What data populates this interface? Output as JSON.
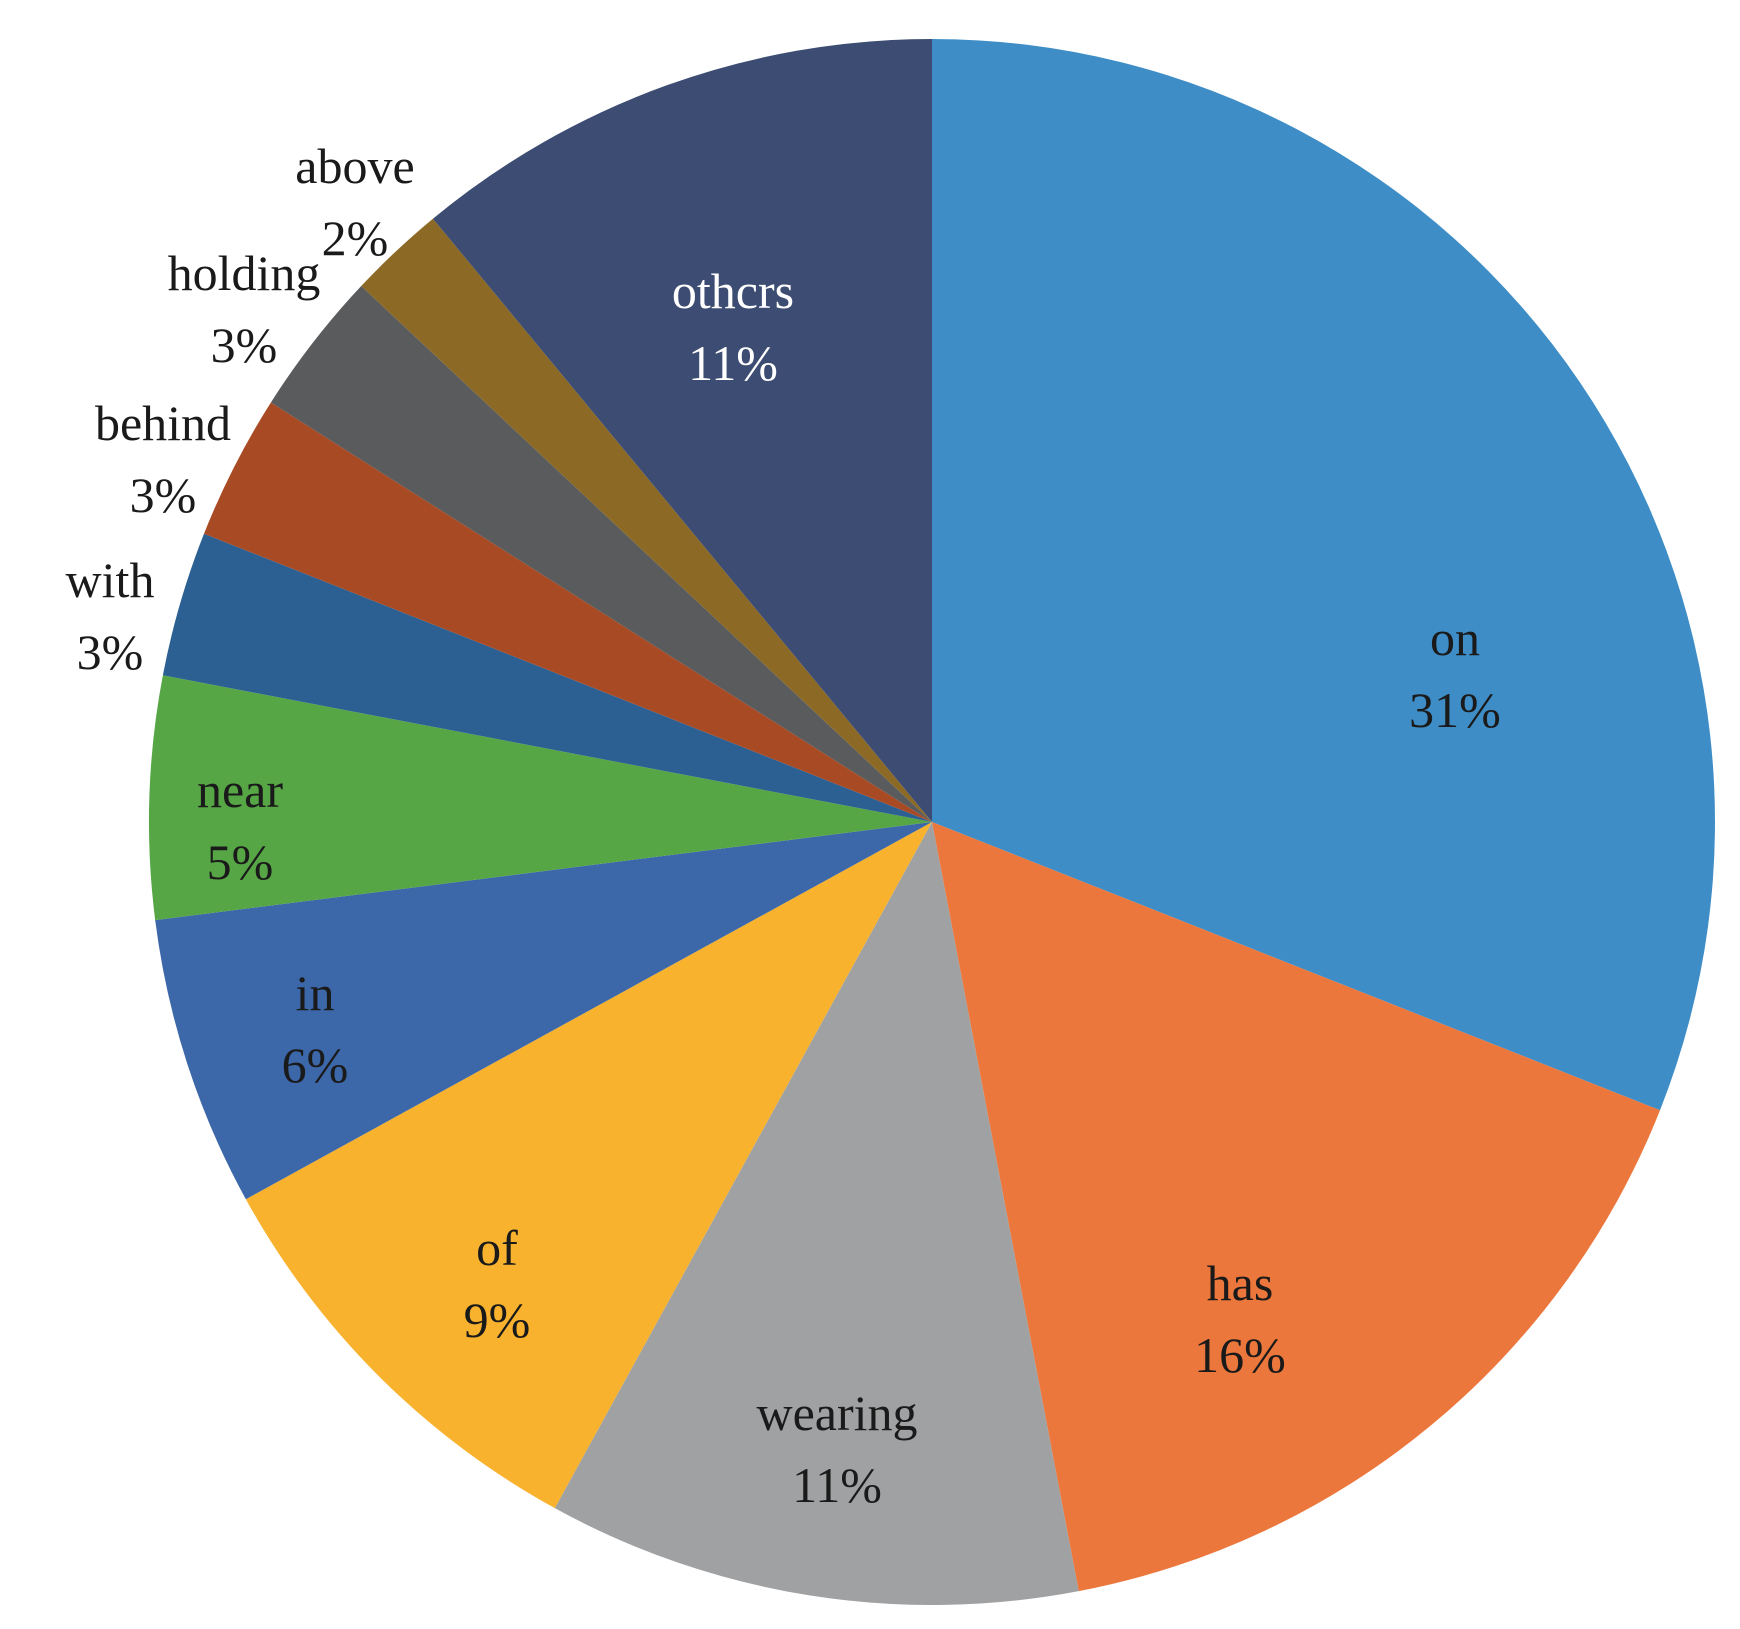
{
  "chart_data": {
    "type": "pie",
    "start": "12 o'clock",
    "direction": "clockwise",
    "legend": "none",
    "slices": [
      {
        "label": "on",
        "percent_label": "31%",
        "value": 31,
        "color": "#3E8DC6",
        "text_color": "#1a1a1a"
      },
      {
        "label": "has",
        "percent_label": "16%",
        "value": 16,
        "color": "#EC773C",
        "text_color": "#1a1a1a"
      },
      {
        "label": "wearing",
        "percent_label": "11%",
        "value": 11,
        "color": "#A0A1A3",
        "text_color": "#1a1a1a"
      },
      {
        "label": "of",
        "percent_label": "9%",
        "value": 9,
        "color": "#F8B22E",
        "text_color": "#1a1a1a"
      },
      {
        "label": "in",
        "percent_label": "6%",
        "value": 6,
        "color": "#3C67A8",
        "text_color": "#1a1a1a"
      },
      {
        "label": "near",
        "percent_label": "5%",
        "value": 5,
        "color": "#56A646",
        "text_color": "#1a1a1a"
      },
      {
        "label": "with",
        "percent_label": "3%",
        "value": 3,
        "color": "#2C5F92",
        "text_color": "#1a1a1a"
      },
      {
        "label": "behind",
        "percent_label": "3%",
        "value": 3,
        "color": "#A84B25",
        "text_color": "#1a1a1a"
      },
      {
        "label": "holding",
        "percent_label": "3%",
        "value": 3,
        "color": "#5A5B5D",
        "text_color": "#1a1a1a"
      },
      {
        "label": "above",
        "percent_label": "2%",
        "value": 2,
        "color": "#8C6A26",
        "text_color": "#1a1a1a"
      },
      {
        "label": "othcrs",
        "percent_label": "11%",
        "value": 11,
        "color": "#3D4C72",
        "text_color": "#ffffff"
      }
    ]
  }
}
